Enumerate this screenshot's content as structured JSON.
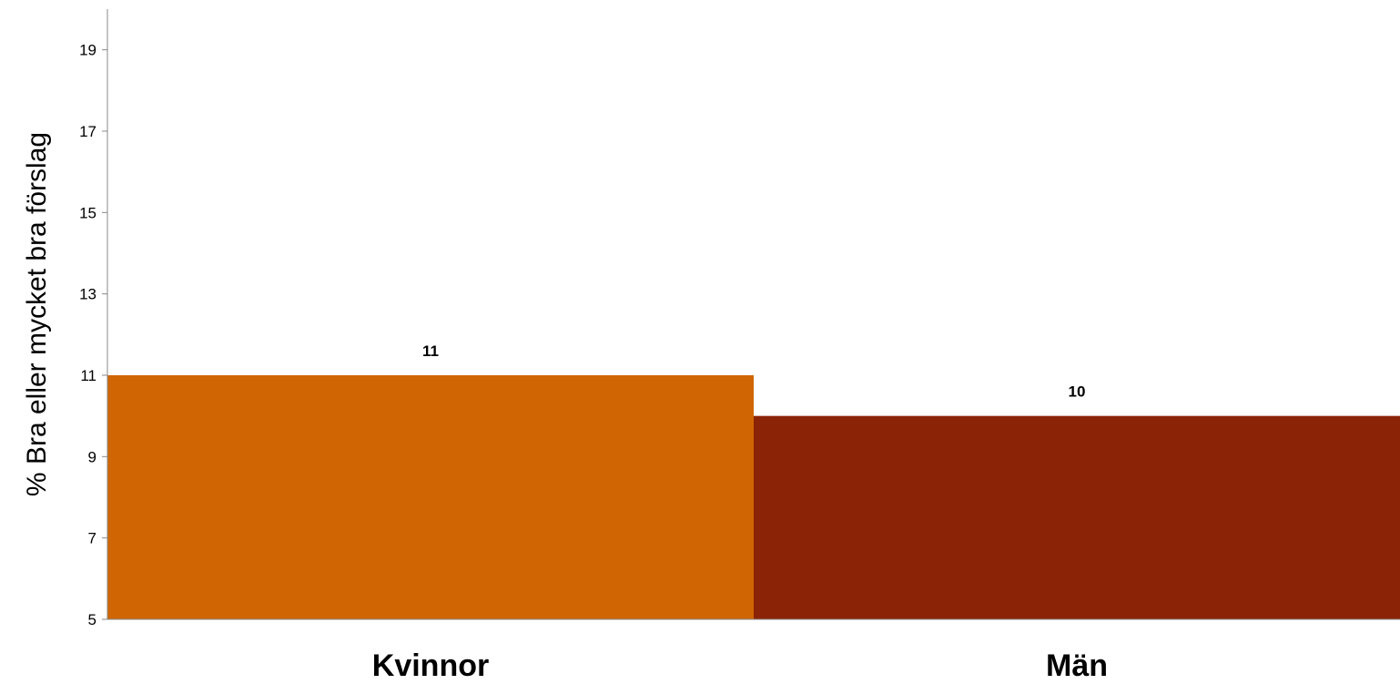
{
  "chart_data": {
    "type": "bar",
    "categories": [
      "Kvinnor",
      "Män"
    ],
    "values": [
      11,
      10
    ],
    "data_labels": [
      "11",
      "10"
    ],
    "colors": [
      "#D06603",
      "#8B2306"
    ],
    "title": "",
    "xlabel": "",
    "ylabel": "% Bra eller mycket bra förslag",
    "ylim": [
      5,
      20
    ],
    "yticks": [
      5,
      7,
      9,
      11,
      13,
      15,
      17,
      19
    ],
    "grid": false,
    "legend": "none"
  }
}
